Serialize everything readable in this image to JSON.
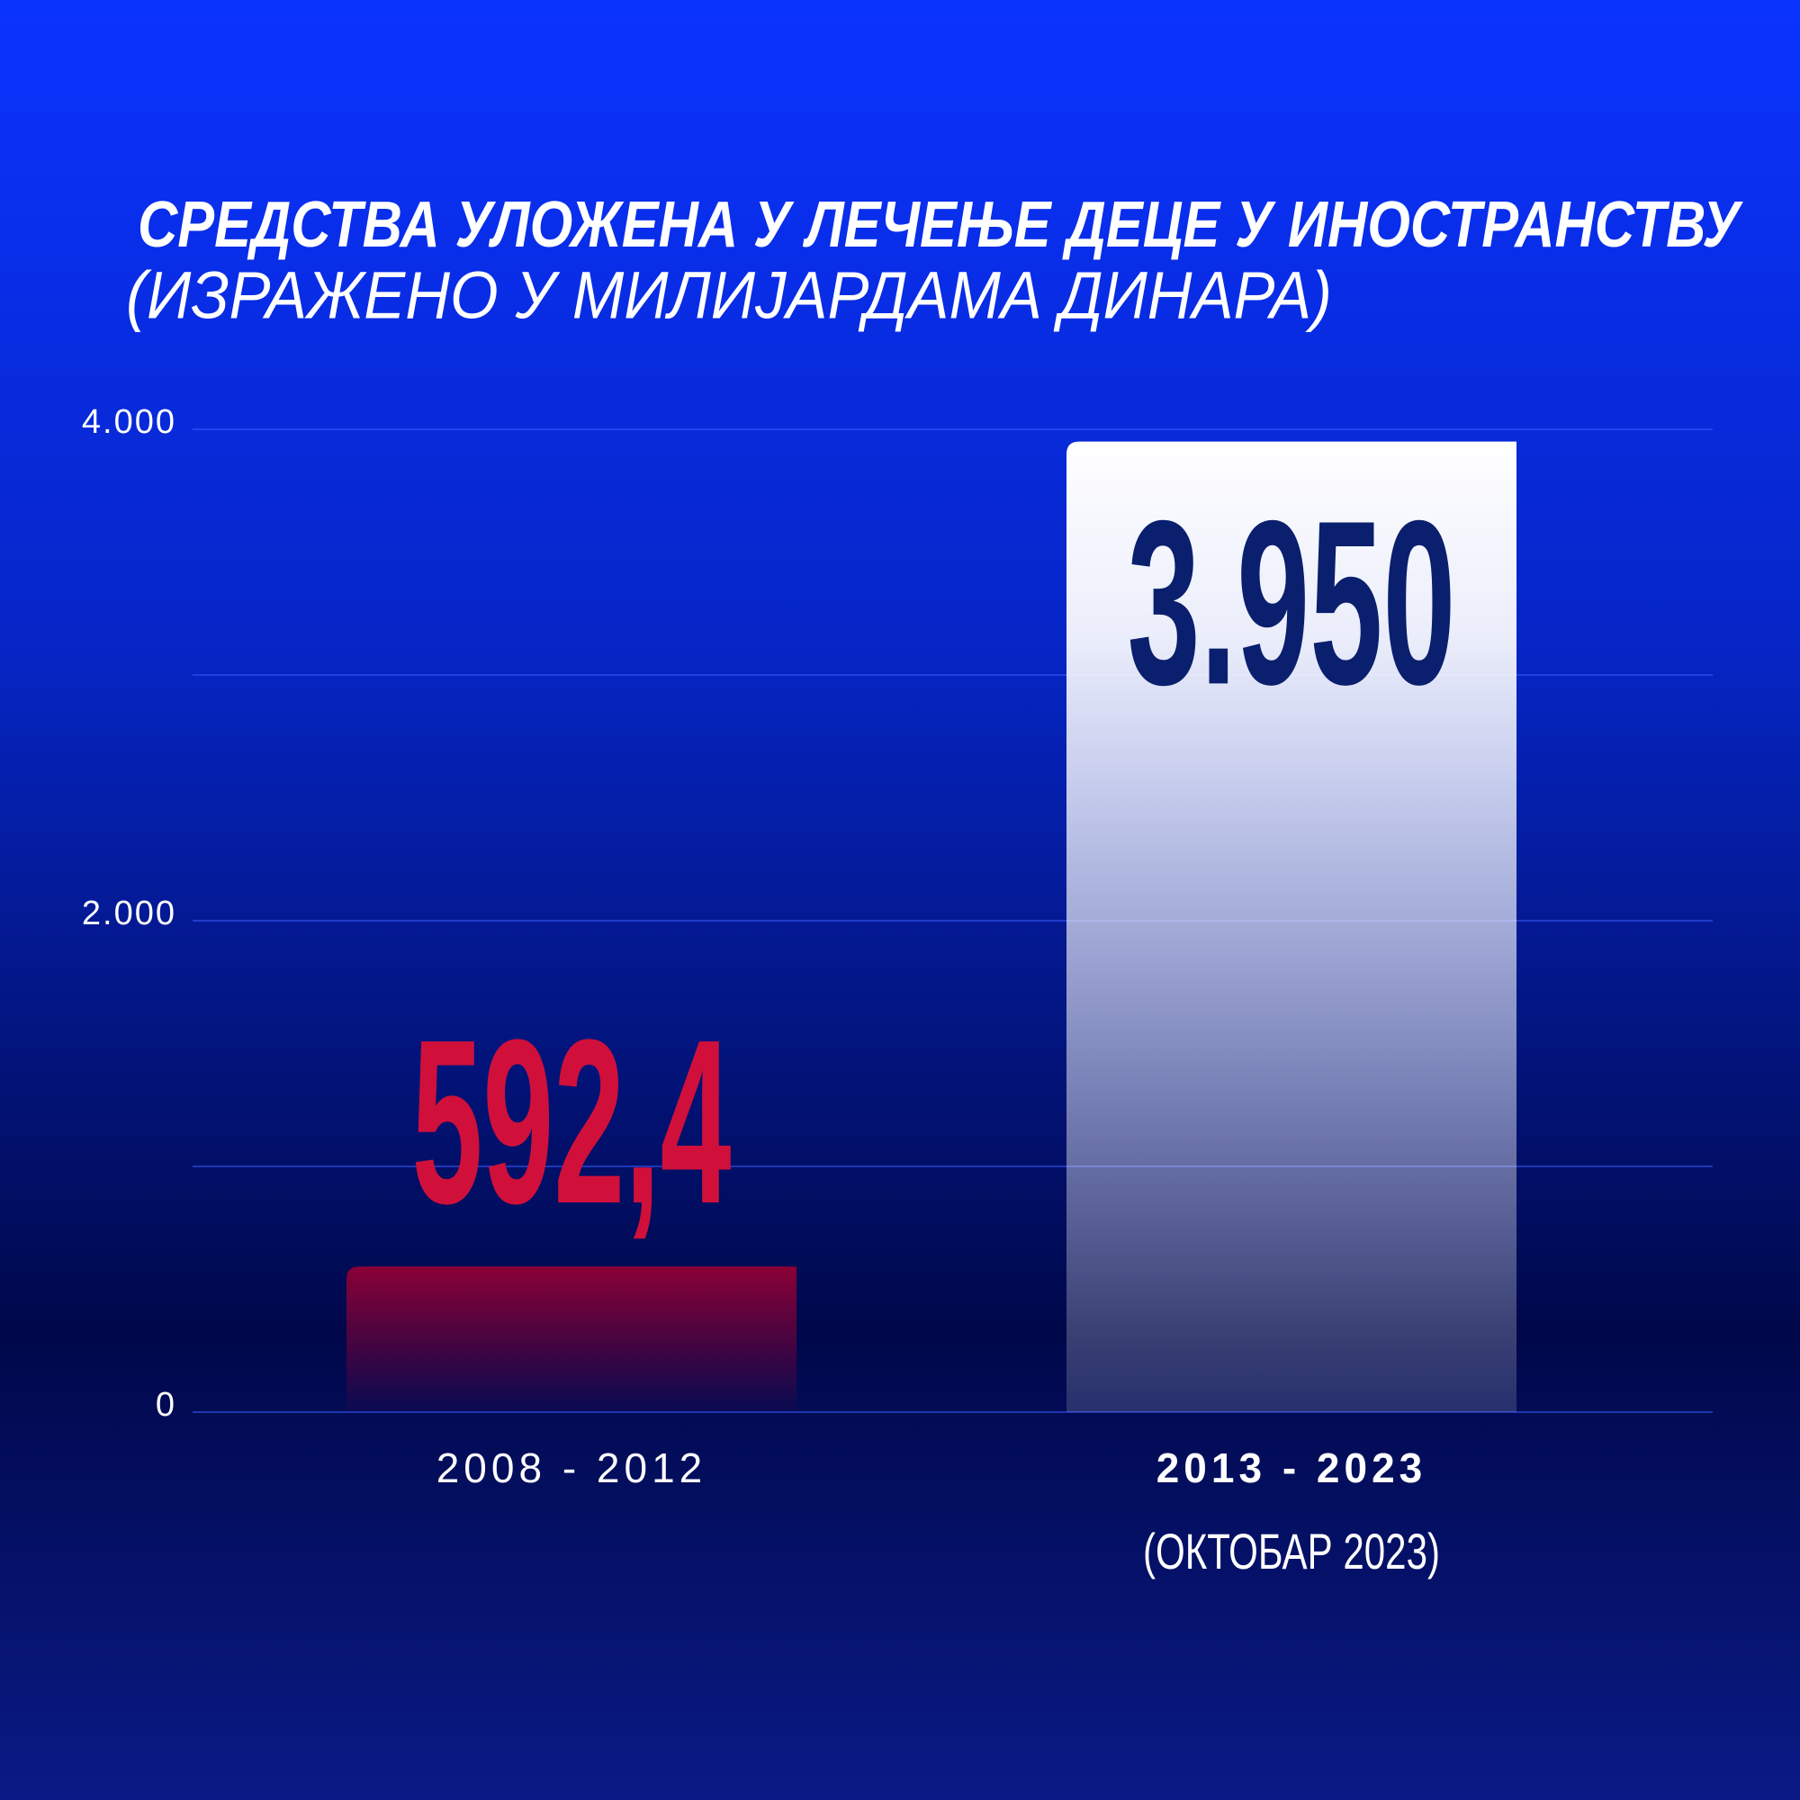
{
  "chart_data": {
    "type": "bar",
    "title": "СРЕДСТВА УЛОЖЕНА У ЛЕЧЕЊЕ ДЕЦЕ У ИНОСТРАНСТВУ",
    "subtitle": "(ИЗРАЖЕНО У МИЛИЈАРДАМА ДИНАРА)",
    "categories": [
      "2008 - 2012",
      "2013 - 2023"
    ],
    "category_notes": [
      null,
      "(ОКТОБАР 2023)"
    ],
    "values": [
      592.4,
      3950
    ],
    "value_labels": [
      "592,4",
      "3.950"
    ],
    "colors": [
      "#d0103a",
      "#ffffff"
    ],
    "ylim": [
      0,
      4000
    ],
    "yticks": [
      0,
      {
        "value": 1000,
        "label": null
      },
      {
        "value": 2000,
        "label": "2.000"
      },
      {
        "value": 3000,
        "label": null
      },
      {
        "value": 4000,
        "label": "4.000"
      }
    ],
    "grid": true
  }
}
